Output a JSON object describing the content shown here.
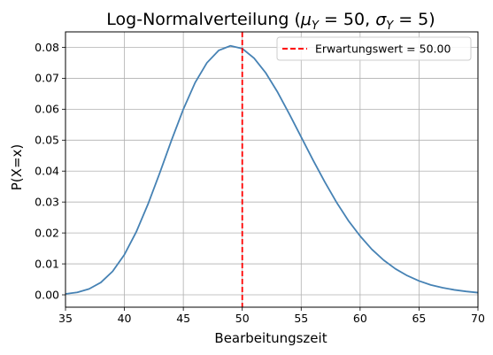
{
  "chart_data": {
    "type": "line",
    "title": "Log-Normalverteilung (μ_Y = 50, σ_Y = 5)",
    "title_parts": {
      "prefix": "Log-Normalverteilung (",
      "mu": "μ",
      "mu_sub": "Y",
      "mu_eq": " = 50, ",
      "sigma": "σ",
      "sigma_sub": "Y",
      "sigma_eq": " = 5)"
    },
    "xlabel": "Bearbeitungszeit",
    "ylabel": "P(X=x)",
    "xlim": [
      35,
      70
    ],
    "ylim": [
      -0.004,
      0.085
    ],
    "xticks": [
      35,
      40,
      45,
      50,
      55,
      60,
      65,
      70
    ],
    "yticks": [
      0.0,
      0.01,
      0.02,
      0.03,
      0.04,
      0.05,
      0.06,
      0.07,
      0.08
    ],
    "ytick_labels": [
      "0.00",
      "0.01",
      "0.02",
      "0.03",
      "0.04",
      "0.05",
      "0.06",
      "0.07",
      "0.08"
    ],
    "grid": true,
    "legend_position": "top-right",
    "series": [
      {
        "x": [
          35,
          36,
          37,
          38,
          39,
          40,
          41,
          42,
          43,
          44,
          45,
          46,
          47,
          48,
          49,
          50,
          51,
          52,
          53,
          54,
          55,
          56,
          57,
          58,
          59,
          60,
          61,
          62,
          63,
          64,
          65,
          66,
          67,
          68,
          69,
          70
        ],
        "values": [
          0.0003,
          0.0008,
          0.0019,
          0.004,
          0.0076,
          0.013,
          0.0203,
          0.0293,
          0.0394,
          0.05,
          0.06,
          0.0686,
          0.075,
          0.079,
          0.0805,
          0.0796,
          0.0765,
          0.0717,
          0.0655,
          0.0584,
          0.051,
          0.0436,
          0.0365,
          0.0299,
          0.024,
          0.019,
          0.0147,
          0.0112,
          0.0084,
          0.0062,
          0.0045,
          0.0032,
          0.0023,
          0.0016,
          0.0011,
          0.0007
        ],
        "color": "#4682b4"
      }
    ],
    "expected_line": {
      "x": 50,
      "label": "Erwartungswert = 50.00",
      "color": "#ff0000"
    }
  }
}
